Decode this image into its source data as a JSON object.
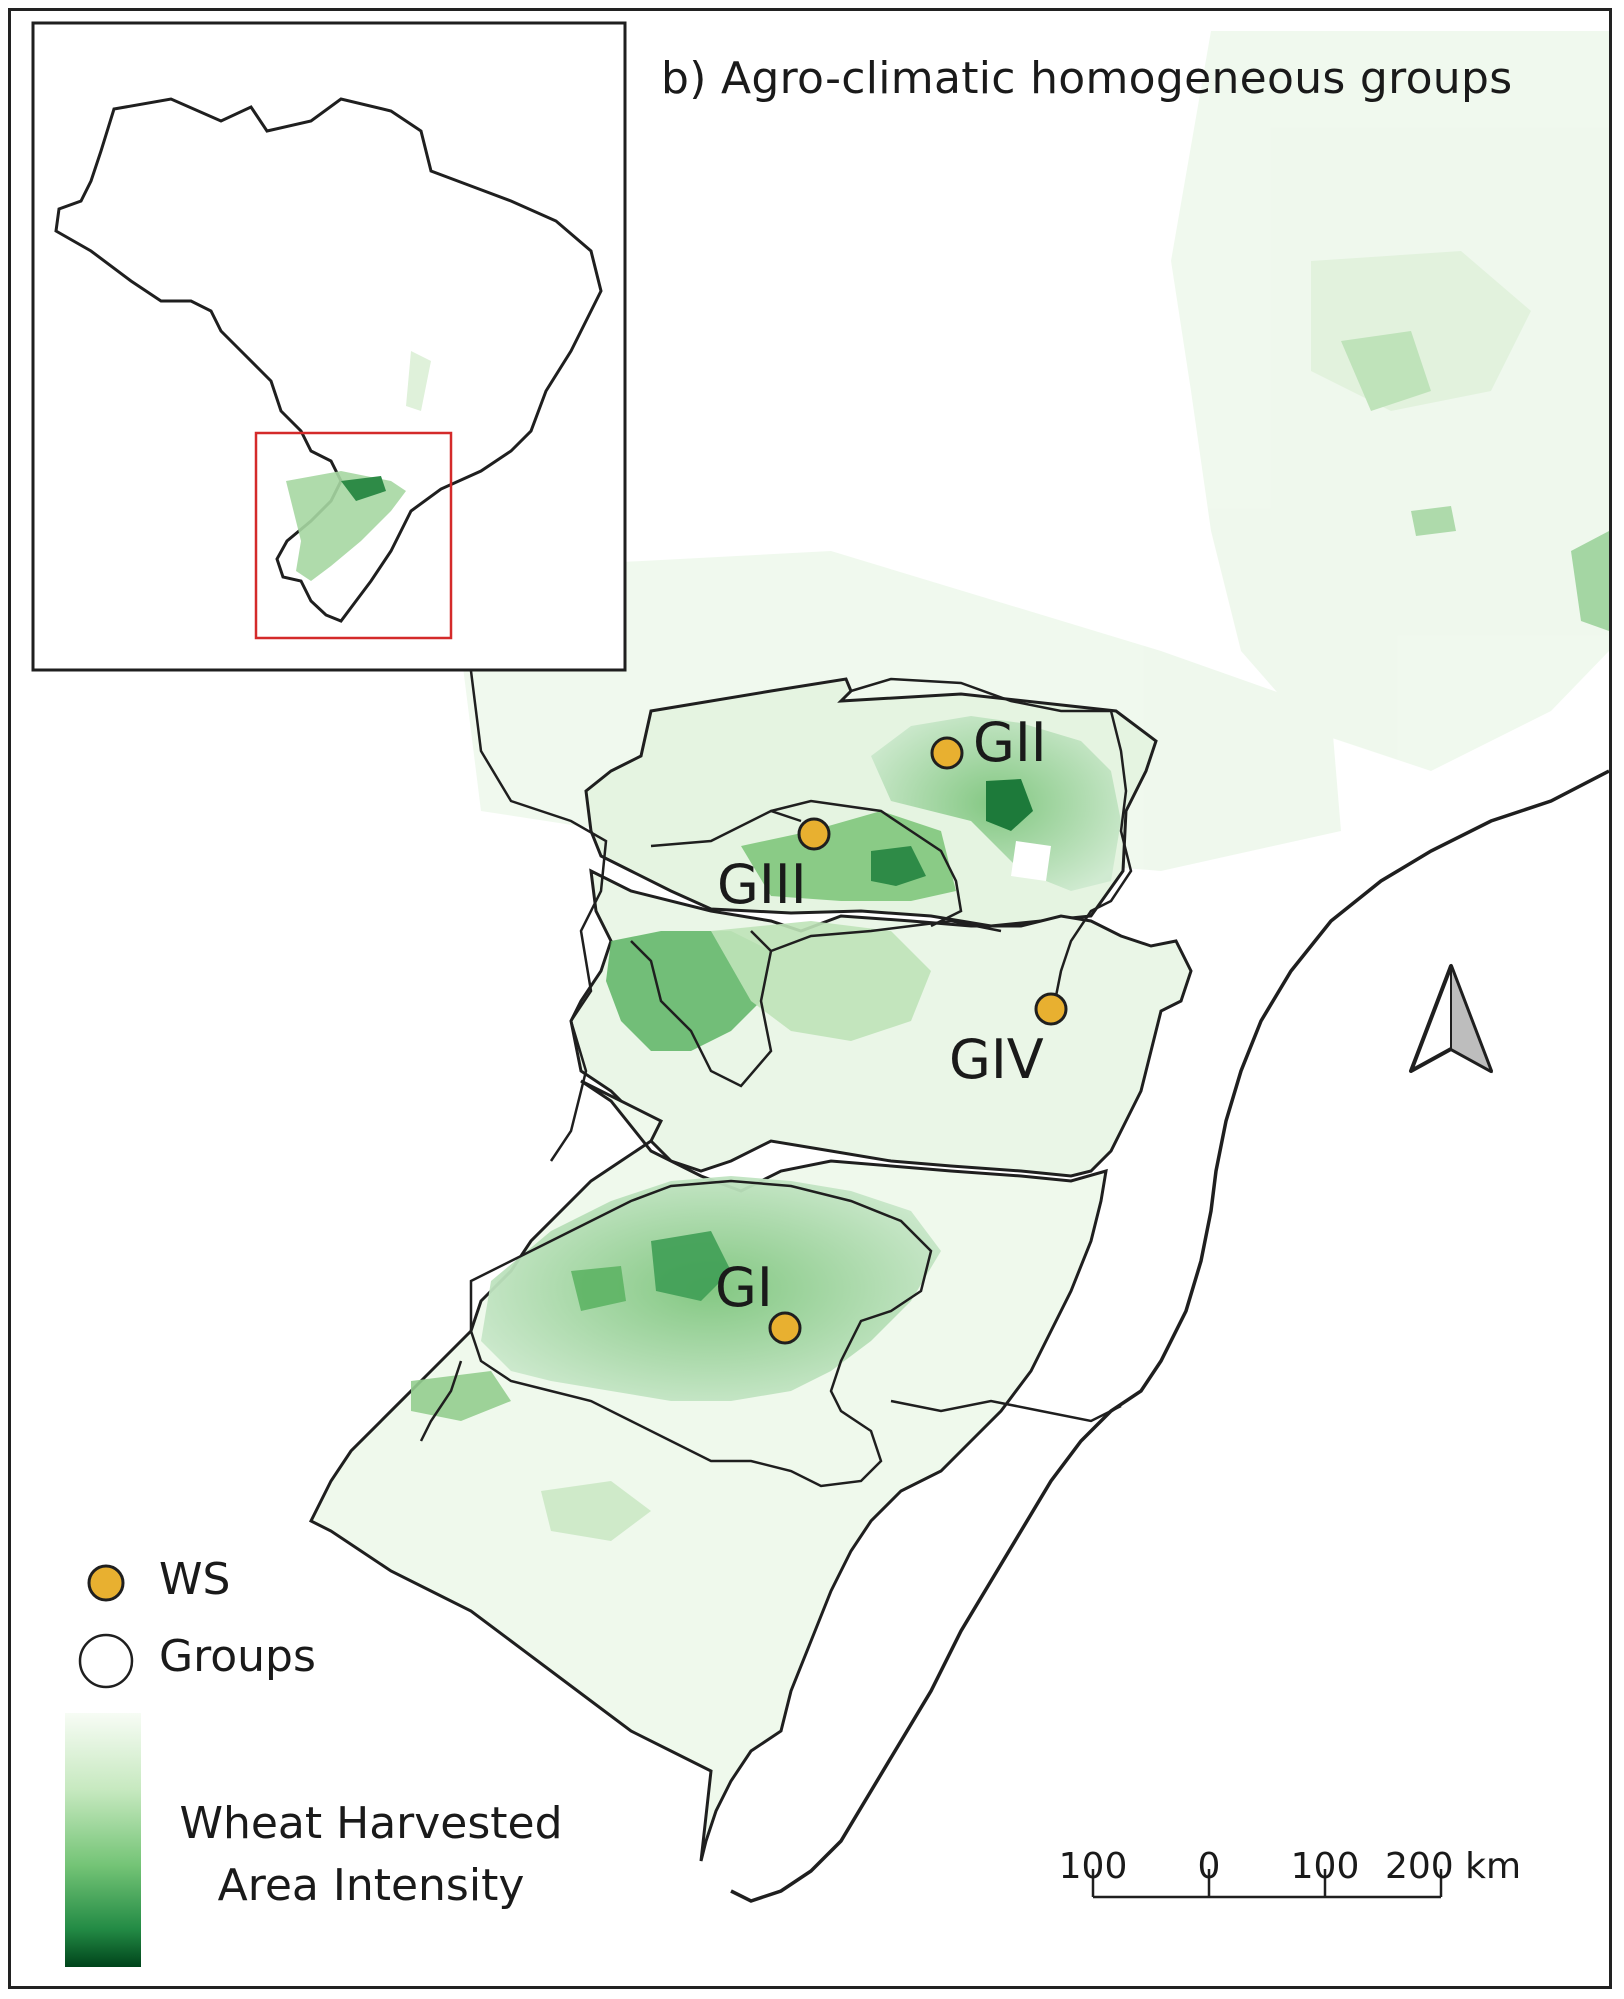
{
  "title": "b) Agro-climatic homogeneous groups",
  "groups": [
    {
      "label": "GI"
    },
    {
      "label": "GII"
    },
    {
      "label": "GIII"
    },
    {
      "label": "GIV"
    }
  ],
  "legend": {
    "ws_label": "WS",
    "groups_label": "Groups",
    "ramp_label_line1": "Wheat Harvested",
    "ramp_label_line2": "Area Intensity"
  },
  "scale_bar": {
    "ticks": [
      "100",
      "0",
      "100",
      "200 km"
    ]
  },
  "colors": {
    "ws_marker": "#e8b030",
    "ramp_light": "#f4fbf2",
    "ramp_dark": "#00632a",
    "inset_extent_box": "#d42a2a",
    "boundary": "#1f1f1f"
  },
  "north_arrow": "north-arrow-icon"
}
